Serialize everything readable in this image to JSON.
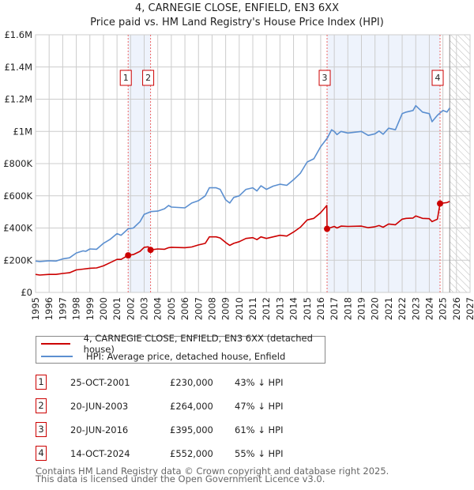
{
  "title_line1": "4, CARNEGIE CLOSE, ENFIELD, EN3 6XX",
  "title_line2": "Price paid vs. HM Land Registry's House Price Index (HPI)",
  "colors": {
    "property": "#cc0000",
    "hpi": "#5b8fd0",
    "shade": "#eef3fc",
    "grid": "#cccccc"
  },
  "chart_data": {
    "type": "line",
    "title": "4, CARNEGIE CLOSE, ENFIELD, EN3 6XX — Price paid vs. HM Land Registry's House Price Index (HPI)",
    "xlim": [
      1995,
      2027
    ],
    "ylim": [
      0,
      1600000
    ],
    "x_ticks": [
      "1995",
      "1996",
      "1997",
      "1998",
      "1999",
      "2000",
      "2001",
      "2002",
      "2003",
      "2004",
      "2005",
      "2006",
      "2007",
      "2008",
      "2009",
      "2010",
      "2011",
      "2012",
      "2013",
      "2014",
      "2015",
      "2016",
      "2017",
      "2018",
      "2019",
      "2020",
      "2021",
      "2022",
      "2023",
      "2024",
      "2025",
      "2026",
      "2027"
    ],
    "y_ticks": [
      {
        "value": 0,
        "label": "£0"
      },
      {
        "value": 200000,
        "label": "£200K"
      },
      {
        "value": 400000,
        "label": "£400K"
      },
      {
        "value": 600000,
        "label": "£600K"
      },
      {
        "value": 800000,
        "label": "£800K"
      },
      {
        "value": 1000000,
        "label": "£1M"
      },
      {
        "value": 1200000,
        "label": "£1.2M"
      },
      {
        "value": 1400000,
        "label": "£1.4M"
      },
      {
        "value": 1600000,
        "label": "£1.6M"
      }
    ],
    "grid": true,
    "forecast_from": 2025.5,
    "shaded_ranges": [
      [
        2001.82,
        2003.47
      ],
      [
        2016.47,
        2024.79
      ]
    ],
    "series": [
      {
        "name": "4, CARNEGIE CLOSE, ENFIELD, EN3 6XX (detached house)",
        "color": "#cc0000",
        "x": [
          1995,
          1995.3,
          1996,
          1996.5,
          1997,
          1997.5,
          1998,
          1998.5,
          1999,
          1999.5,
          2000,
          2000.5,
          2001,
          2001.3,
          2001.82,
          2002.2,
          2002.7,
          2003,
          2003.3,
          2003.47,
          2004,
          2004.5,
          2004.8,
          2005,
          2006,
          2006.5,
          2007,
          2007.5,
          2007.8,
          2008.3,
          2008.6,
          2009,
          2009.3,
          2009.6,
          2010,
          2010.5,
          2011,
          2011.3,
          2011.6,
          2012,
          2012.5,
          2013,
          2013.5,
          2014,
          2014.5,
          2015,
          2015.5,
          2016,
          2016.45,
          2016.47,
          2017,
          2017.2,
          2017.5,
          2018,
          2019,
          2019.5,
          2020,
          2020.3,
          2020.6,
          2021,
          2021.5,
          2022,
          2022.3,
          2022.8,
          2023,
          2023.5,
          2024,
          2024.2,
          2024.6,
          2024.79,
          2025,
          2025.3,
          2025.5
        ],
        "values": [
          112000,
          108000,
          112000,
          112000,
          118000,
          122000,
          140000,
          145000,
          150000,
          152000,
          165000,
          185000,
          205000,
          205000,
          230000,
          235000,
          255000,
          280000,
          283000,
          264000,
          270000,
          268000,
          278000,
          280000,
          278000,
          282000,
          295000,
          305000,
          345000,
          345000,
          338000,
          310000,
          292000,
          305000,
          315000,
          335000,
          340000,
          328000,
          345000,
          335000,
          345000,
          355000,
          350000,
          375000,
          405000,
          450000,
          460000,
          495000,
          540000,
          395000,
          410000,
          400000,
          412000,
          410000,
          412000,
          402000,
          408000,
          415000,
          405000,
          425000,
          420000,
          455000,
          460000,
          462000,
          475000,
          460000,
          458000,
          440000,
          455000,
          552000,
          555000,
          558000,
          565000
        ]
      },
      {
        "name": "HPI: Average price, detached house, Enfield",
        "color": "#5b8fd0",
        "x": [
          1995,
          1995.3,
          1996,
          1996.5,
          1997,
          1997.5,
          1998,
          1998.5,
          1998.7,
          1999,
          1999.5,
          2000,
          2000.5,
          2001,
          2001.3,
          2001.82,
          2002.2,
          2002.7,
          2003,
          2003.5,
          2004,
          2004.5,
          2004.8,
          2005,
          2006,
          2006.5,
          2007,
          2007.5,
          2007.8,
          2008.3,
          2008.6,
          2009,
          2009.3,
          2009.6,
          2010,
          2010.5,
          2011,
          2011.3,
          2011.6,
          2012,
          2012.5,
          2013,
          2013.5,
          2014,
          2014.5,
          2015,
          2015.5,
          2016,
          2016.5,
          2016.8,
          2017,
          2017.2,
          2017.5,
          2018,
          2019,
          2019.5,
          2020,
          2020.3,
          2020.6,
          2021,
          2021.5,
          2022,
          2022.3,
          2022.8,
          2023,
          2023.5,
          2024,
          2024.2,
          2024.6,
          2025,
          2025.3,
          2025.5
        ],
        "values": [
          195000,
          192000,
          197000,
          195000,
          208000,
          215000,
          245000,
          258000,
          255000,
          270000,
          268000,
          305000,
          330000,
          365000,
          355000,
          395000,
          400000,
          440000,
          485000,
          502000,
          505000,
          520000,
          540000,
          530000,
          525000,
          555000,
          570000,
          600000,
          650000,
          650000,
          640000,
          575000,
          555000,
          590000,
          600000,
          640000,
          650000,
          630000,
          662000,
          640000,
          660000,
          672000,
          665000,
          700000,
          740000,
          810000,
          830000,
          905000,
          960000,
          1010000,
          1000000,
          980000,
          1000000,
          990000,
          1000000,
          975000,
          985000,
          1002000,
          982000,
          1020000,
          1010000,
          1110000,
          1120000,
          1130000,
          1160000,
          1120000,
          1110000,
          1060000,
          1100000,
          1130000,
          1120000,
          1145000
        ]
      }
    ],
    "sales": [
      {
        "n": "1",
        "x": 2001.82,
        "value": 230000
      },
      {
        "n": "2",
        "x": 2003.47,
        "value": 264000
      },
      {
        "n": "3",
        "x": 2016.47,
        "value": 395000
      },
      {
        "n": "4",
        "x": 2024.79,
        "value": 552000
      }
    ]
  },
  "legend": [
    {
      "label": "4, CARNEGIE CLOSE, ENFIELD, EN3 6XX (detached house)"
    },
    {
      "label": "HPI: Average price, detached house, Enfield"
    }
  ],
  "table": [
    {
      "n": "1",
      "date": "25-OCT-2001",
      "price": "£230,000",
      "delta": "43% ↓ HPI"
    },
    {
      "n": "2",
      "date": "20-JUN-2003",
      "price": "£264,000",
      "delta": "47% ↓ HPI"
    },
    {
      "n": "3",
      "date": "20-JUN-2016",
      "price": "£395,000",
      "delta": "61% ↓ HPI"
    },
    {
      "n": "4",
      "date": "14-OCT-2024",
      "price": "£552,000",
      "delta": "55% ↓ HPI"
    }
  ],
  "footer_line1": "Contains HM Land Registry data © Crown copyright and database right 2025.",
  "footer_line2": "This data is licensed under the Open Government Licence v3.0."
}
